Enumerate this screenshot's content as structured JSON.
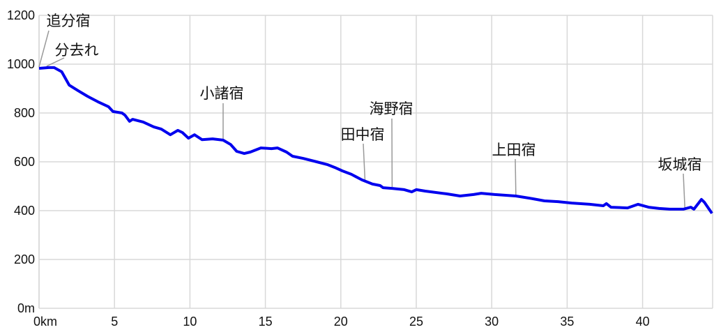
{
  "chart_data": {
    "type": "line",
    "title": "",
    "xlabel": "",
    "ylabel": "",
    "xlim": [
      0,
      44.7
    ],
    "ylim": [
      0,
      1200
    ],
    "grid": true,
    "line_color": "#0000ee",
    "x_ticks": [
      {
        "value": 0,
        "label": "0km"
      },
      {
        "value": 5,
        "label": "5"
      },
      {
        "value": 10,
        "label": "10"
      },
      {
        "value": 15,
        "label": "15"
      },
      {
        "value": 20,
        "label": "20"
      },
      {
        "value": 25,
        "label": "25"
      },
      {
        "value": 30,
        "label": "30"
      },
      {
        "value": 35,
        "label": "35"
      },
      {
        "value": 40,
        "label": "40"
      }
    ],
    "y_ticks": [
      {
        "value": 0,
        "label": "0m"
      },
      {
        "value": 200,
        "label": "200"
      },
      {
        "value": 400,
        "label": "400"
      },
      {
        "value": 600,
        "label": "600"
      },
      {
        "value": 800,
        "label": "800"
      },
      {
        "value": 1000,
        "label": "1000"
      },
      {
        "value": 1200,
        "label": "1200"
      }
    ],
    "series": [
      {
        "x": [
          0,
          0.65,
          1.0,
          1.5,
          2.0,
          2.6,
          3.2,
          3.9,
          4.6,
          4.9,
          5.5,
          5.7,
          6.0,
          6.2,
          6.9,
          7.6,
          8.1,
          8.7,
          9.2,
          9.5,
          9.9,
          10.3,
          10.8,
          11.5,
          12.2,
          12.7,
          13.1,
          13.6,
          14.0,
          14.7,
          15.4,
          15.8,
          16.4,
          16.8,
          17.5,
          18.4,
          19.1,
          19.6,
          20.1,
          20.7,
          21.4,
          22.1,
          22.6,
          22.8,
          23.4,
          24.2,
          24.7,
          25.0,
          25.6,
          27.0,
          27.9,
          28.8,
          29.3,
          30.2,
          31.6,
          32.5,
          33.5,
          34.4,
          35.3,
          36.5,
          37.4,
          37.6,
          37.9,
          39.0,
          39.7,
          40.4,
          41.1,
          41.8,
          42.7,
          43.2,
          43.4,
          43.9,
          44.1,
          44.6
        ],
        "y": [
          983,
          986,
          986,
          969,
          914,
          891,
          869,
          846,
          826,
          806,
          800,
          791,
          766,
          774,
          763,
          743,
          734,
          711,
          729,
          720,
          697,
          711,
          691,
          694,
          689,
          671,
          643,
          634,
          640,
          657,
          654,
          657,
          640,
          623,
          614,
          600,
          589,
          577,
          563,
          549,
          526,
          509,
          503,
          494,
          491,
          486,
          477,
          486,
          480,
          469,
          460,
          466,
          471,
          466,
          460,
          451,
          440,
          437,
          431,
          426,
          420,
          429,
          414,
          411,
          426,
          414,
          409,
          406,
          406,
          414,
          406,
          446,
          434,
          389
        ]
      }
    ],
    "annotations": [
      {
        "text": "追分宿",
        "x": 0.0,
        "elevation": 983
      },
      {
        "text": "分去れ",
        "x": 0.5,
        "elevation": 986
      },
      {
        "text": "小諸宿",
        "x": 12.2,
        "elevation": 689
      },
      {
        "text": "田中宿",
        "x": 21.6,
        "elevation": 520
      },
      {
        "text": "海野宿",
        "x": 23.4,
        "elevation": 491
      },
      {
        "text": "上田宿",
        "x": 31.6,
        "elevation": 460
      },
      {
        "text": "坂城宿",
        "x": 42.8,
        "elevation": 406
      }
    ]
  }
}
